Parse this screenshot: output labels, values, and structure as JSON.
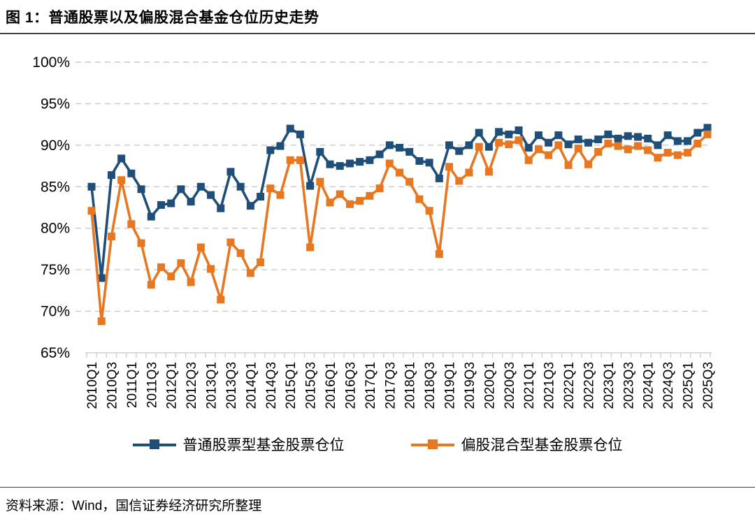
{
  "header": {
    "title": "图 1：普通股票以及偏股混合基金仓位历史走势"
  },
  "footer": {
    "source": "资料来源：Wind，国信证券经济研究所整理"
  },
  "colors": {
    "series_ordinary": "#1F4E79",
    "series_hybrid": "#E87722",
    "gridline": "#C9C9C9",
    "axis_line": "#CFCFCF",
    "rule": "#3f3f3f",
    "text": "#000000"
  },
  "legend": {
    "items": [
      {
        "label": "普通股票型基金股票仓位",
        "color": "#1F4E79"
      },
      {
        "label": "偏股混合型基金股票仓位",
        "color": "#E87722"
      }
    ]
  },
  "chart_data": {
    "type": "line",
    "title": "图 1：普通股票以及偏股混合基金仓位历史走势",
    "marker": "square",
    "grid": "horizontal-dashed",
    "legend_position": "bottom",
    "ylim": [
      65,
      100
    ],
    "yticks": [
      {
        "value": 100,
        "label": "100%"
      },
      {
        "value": 95,
        "label": "95%"
      },
      {
        "value": 90,
        "label": "90%"
      },
      {
        "value": 85,
        "label": "85%"
      },
      {
        "value": 80,
        "label": "80%"
      },
      {
        "value": 75,
        "label": "75%"
      },
      {
        "value": 70,
        "label": "70%"
      },
      {
        "value": 65,
        "label": "65%"
      }
    ],
    "x_label_every": 2,
    "x": [
      "2010Q1",
      "2010Q2",
      "2010Q3",
      "2010Q4",
      "2011Q1",
      "2011Q2",
      "2011Q3",
      "2011Q4",
      "2012Q1",
      "2012Q2",
      "2012Q3",
      "2012Q4",
      "2013Q1",
      "2013Q2",
      "2013Q3",
      "2013Q4",
      "2014Q1",
      "2014Q2",
      "2014Q3",
      "2014Q4",
      "2015Q1",
      "2015Q2",
      "2015Q3",
      "2015Q4",
      "2016Q1",
      "2016Q2",
      "2016Q3",
      "2016Q4",
      "2017Q1",
      "2017Q2",
      "2017Q3",
      "2017Q4",
      "2018Q1",
      "2018Q2",
      "2018Q3",
      "2018Q4",
      "2019Q1",
      "2019Q2",
      "2019Q3",
      "2019Q4",
      "2020Q1",
      "2020Q2",
      "2020Q3",
      "2020Q4",
      "2021Q1",
      "2021Q2",
      "2021Q3",
      "2021Q4",
      "2022Q1",
      "2022Q2",
      "2022Q3",
      "2022Q4",
      "2023Q1",
      "2023Q2",
      "2023Q3",
      "2023Q4",
      "2024Q1",
      "2024Q2",
      "2024Q3",
      "2024Q4",
      "2025Q1",
      "2025Q2",
      "2025Q3"
    ],
    "series": [
      {
        "name": "普通股票型基金股票仓位",
        "color": "#1F4E79",
        "values": [
          85.0,
          74.0,
          86.4,
          88.4,
          86.6,
          84.7,
          81.4,
          82.8,
          83.0,
          84.7,
          83.2,
          85.0,
          84.0,
          82.4,
          86.8,
          85.0,
          82.7,
          83.8,
          89.4,
          89.9,
          92.0,
          91.3,
          85.1,
          89.2,
          87.7,
          87.5,
          87.8,
          88.0,
          88.2,
          88.9,
          90.0,
          89.7,
          89.2,
          88.1,
          87.9,
          86.0,
          90.0,
          89.3,
          90.0,
          91.5,
          89.8,
          91.6,
          91.3,
          91.8,
          89.7,
          91.2,
          90.3,
          91.2,
          90.1,
          90.7,
          90.3,
          90.7,
          91.3,
          90.8,
          91.1,
          91.0,
          90.8,
          90.0,
          91.2,
          90.5,
          90.5,
          91.5,
          92.1
        ]
      },
      {
        "name": "偏股混合型基金股票仓位",
        "color": "#E87722",
        "values": [
          82.1,
          68.8,
          79.0,
          85.8,
          80.5,
          78.2,
          73.2,
          75.3,
          74.2,
          75.8,
          73.5,
          77.7,
          75.1,
          71.4,
          78.3,
          77.0,
          74.6,
          75.9,
          84.8,
          84.0,
          88.2,
          88.2,
          77.7,
          85.6,
          83.1,
          84.1,
          82.9,
          83.3,
          83.9,
          84.8,
          87.8,
          86.7,
          85.6,
          83.5,
          82.1,
          76.9,
          87.4,
          85.7,
          86.7,
          89.8,
          86.8,
          90.3,
          90.1,
          90.6,
          88.2,
          89.5,
          88.8,
          90.0,
          87.6,
          89.6,
          87.7,
          89.2,
          90.2,
          89.9,
          89.5,
          89.9,
          89.4,
          88.5,
          89.1,
          88.8,
          89.1,
          90.2,
          91.3
        ]
      }
    ]
  }
}
